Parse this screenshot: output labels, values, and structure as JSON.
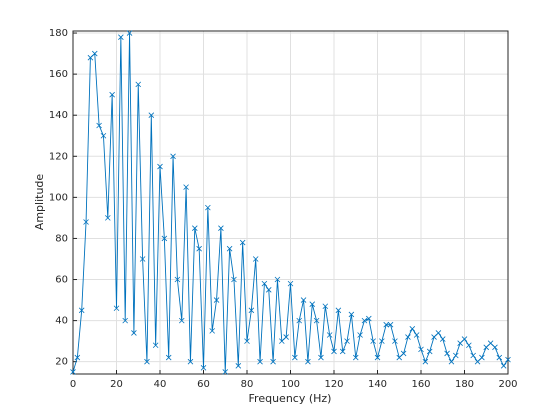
{
  "chart_data": {
    "type": "line",
    "xlabel": "Frequency (Hz)",
    "ylabel": "Amplitude",
    "x": [
      0,
      2,
      4,
      6,
      8,
      10,
      12,
      14,
      16,
      18,
      20,
      22,
      24,
      26,
      28,
      30,
      32,
      34,
      36,
      38,
      40,
      42,
      44,
      46,
      48,
      50,
      52,
      54,
      56,
      58,
      60,
      62,
      64,
      66,
      68,
      70,
      72,
      74,
      76,
      78,
      80,
      82,
      84,
      86,
      88,
      90,
      92,
      94,
      96,
      98,
      100,
      102,
      104,
      106,
      108,
      110,
      112,
      114,
      116,
      118,
      120,
      122,
      124,
      126,
      128,
      130,
      132,
      134,
      136,
      138,
      140,
      142,
      144,
      146,
      148,
      150,
      152,
      154,
      156,
      158,
      160,
      162,
      164,
      166,
      168,
      170,
      172,
      174,
      176,
      178,
      180,
      182,
      184,
      186,
      188,
      190,
      192,
      194,
      196,
      198,
      200
    ],
    "series": [
      {
        "color": "#0072bd",
        "marker": "x",
        "values": [
          15,
          22,
          45,
          88,
          168,
          170,
          135,
          130,
          90,
          150,
          46,
          178,
          40,
          180,
          34,
          155,
          70,
          20,
          140,
          28,
          115,
          80,
          22,
          120,
          60,
          40,
          105,
          20,
          85,
          75,
          17,
          95,
          35,
          50,
          85,
          15,
          75,
          60,
          18,
          78,
          30,
          45,
          70,
          20,
          58,
          55,
          20,
          60,
          30,
          32,
          58,
          22,
          40,
          50,
          20,
          48,
          40,
          22,
          47,
          33,
          25,
          45,
          25,
          30,
          43,
          22,
          33,
          40,
          41,
          30,
          22,
          30,
          38,
          38,
          30,
          22,
          24,
          32,
          36,
          33,
          26,
          20,
          25,
          32,
          34,
          31,
          24,
          20,
          23,
          29,
          31,
          28,
          23,
          20,
          22,
          27,
          29,
          27,
          22,
          18,
          21
        ]
      }
    ],
    "xlim": [
      0,
      200
    ],
    "xticks": [
      0,
      20,
      40,
      60,
      80,
      100,
      120,
      140,
      160,
      180,
      200
    ],
    "ylim": [
      14,
      181
    ],
    "yticks": [
      20,
      40,
      60,
      80,
      100,
      120,
      140,
      160,
      180
    ],
    "grid": true
  }
}
